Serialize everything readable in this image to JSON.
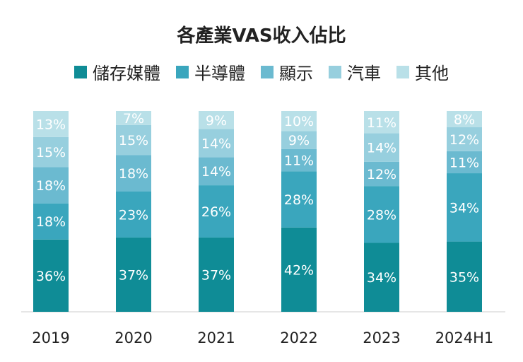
{
  "chart_data": {
    "type": "bar",
    "stacked": true,
    "title": "各產業VAS收入佔比",
    "categories": [
      "2019",
      "2020",
      "2021",
      "2022",
      "2023",
      "2024H1"
    ],
    "series": [
      {
        "name": "儲存媒體",
        "color": "#0f8c96",
        "values": [
          36,
          37,
          37,
          42,
          34,
          35
        ]
      },
      {
        "name": "半導體",
        "color": "#3aa6bd",
        "values": [
          18,
          23,
          26,
          28,
          28,
          34
        ]
      },
      {
        "name": "顯示",
        "color": "#6bbad0",
        "values": [
          18,
          18,
          14,
          11,
          12,
          11
        ]
      },
      {
        "name": "汽車",
        "color": "#97cfde",
        "values": [
          15,
          15,
          14,
          9,
          14,
          12
        ]
      },
      {
        "name": "其他",
        "color": "#b9e0e8",
        "values": [
          13,
          7,
          9,
          10,
          11,
          8
        ]
      }
    ],
    "unit": "%",
    "ylim": [
      0,
      100
    ],
    "grid": false,
    "legend": "top"
  }
}
